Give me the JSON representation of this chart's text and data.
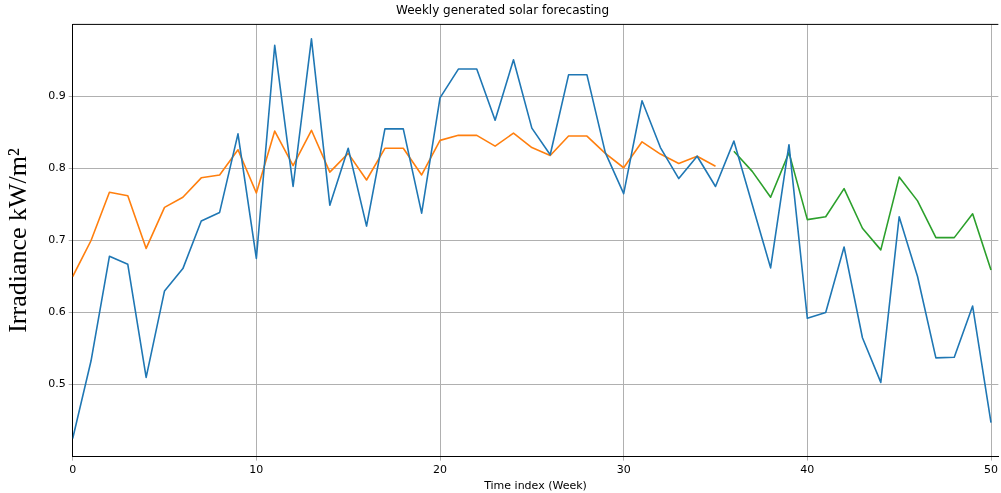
{
  "chart_data": {
    "type": "line",
    "title": "Weekly generated solar forecasting",
    "xlabel": "Time index (Week)",
    "ylabel": "Irradiance kW/m²",
    "xlim": [
      0,
      50.4
    ],
    "xticks": [
      0,
      10,
      20,
      30,
      40,
      50
    ],
    "ylim": [
      0.4,
      1.0
    ],
    "yticks": [
      0.5,
      0.6,
      0.7,
      0.8,
      0.9
    ],
    "grid": true,
    "legend": false,
    "marker": "none",
    "line_style": "solid",
    "series": [
      {
        "color": "#1f77b4",
        "x": [
          0,
          1,
          2,
          3,
          4,
          5,
          6,
          7,
          8,
          9,
          10,
          11,
          12,
          13,
          14,
          15,
          16,
          17,
          18,
          19,
          20,
          21,
          22,
          23,
          24,
          25,
          26,
          27,
          28,
          29,
          30,
          31,
          32,
          33,
          34,
          35,
          36,
          37,
          38,
          39,
          40,
          41,
          42,
          43,
          44,
          45,
          46,
          47,
          48,
          49,
          50
        ],
        "values": [
          0.425,
          0.533,
          0.678,
          0.667,
          0.51,
          0.63,
          0.661,
          0.727,
          0.739,
          0.848,
          0.675,
          0.971,
          0.775,
          0.98,
          0.749,
          0.828,
          0.72,
          0.855,
          0.855,
          0.738,
          0.898,
          0.938,
          0.938,
          0.867,
          0.951,
          0.856,
          0.819,
          0.93,
          0.93,
          0.822,
          0.765,
          0.894,
          0.829,
          0.786,
          0.817,
          0.775,
          0.838,
          0.75,
          0.662,
          0.833,
          0.592,
          0.6,
          0.691,
          0.565,
          0.503,
          0.733,
          0.65,
          0.537,
          0.538,
          0.609,
          0.447
        ]
      },
      {
        "color": "#ff7f0e",
        "x": [
          0,
          1,
          2,
          3,
          4,
          5,
          6,
          7,
          8,
          9,
          10,
          11,
          12,
          13,
          14,
          15,
          16,
          17,
          18,
          19,
          20,
          21,
          22,
          23,
          24,
          25,
          26,
          27,
          28,
          29,
          30,
          31,
          32,
          33,
          34,
          35
        ],
        "values": [
          0.65,
          0.7,
          0.767,
          0.762,
          0.689,
          0.746,
          0.76,
          0.787,
          0.791,
          0.826,
          0.766,
          0.852,
          0.804,
          0.853,
          0.795,
          0.821,
          0.784,
          0.828,
          0.828,
          0.791,
          0.839,
          0.846,
          0.846,
          0.831,
          0.849,
          0.829,
          0.818,
          0.845,
          0.845,
          0.821,
          0.801,
          0.837,
          0.82,
          0.807,
          0.817,
          0.803
        ]
      },
      {
        "color": "#2ca02c",
        "x": [
          36,
          37,
          38,
          39,
          40,
          41,
          42,
          43,
          44,
          45,
          46,
          47,
          48,
          49,
          50
        ],
        "values": [
          0.824,
          0.796,
          0.76,
          0.822,
          0.729,
          0.733,
          0.772,
          0.717,
          0.687,
          0.788,
          0.755,
          0.704,
          0.704,
          0.737,
          0.659
        ]
      }
    ]
  }
}
